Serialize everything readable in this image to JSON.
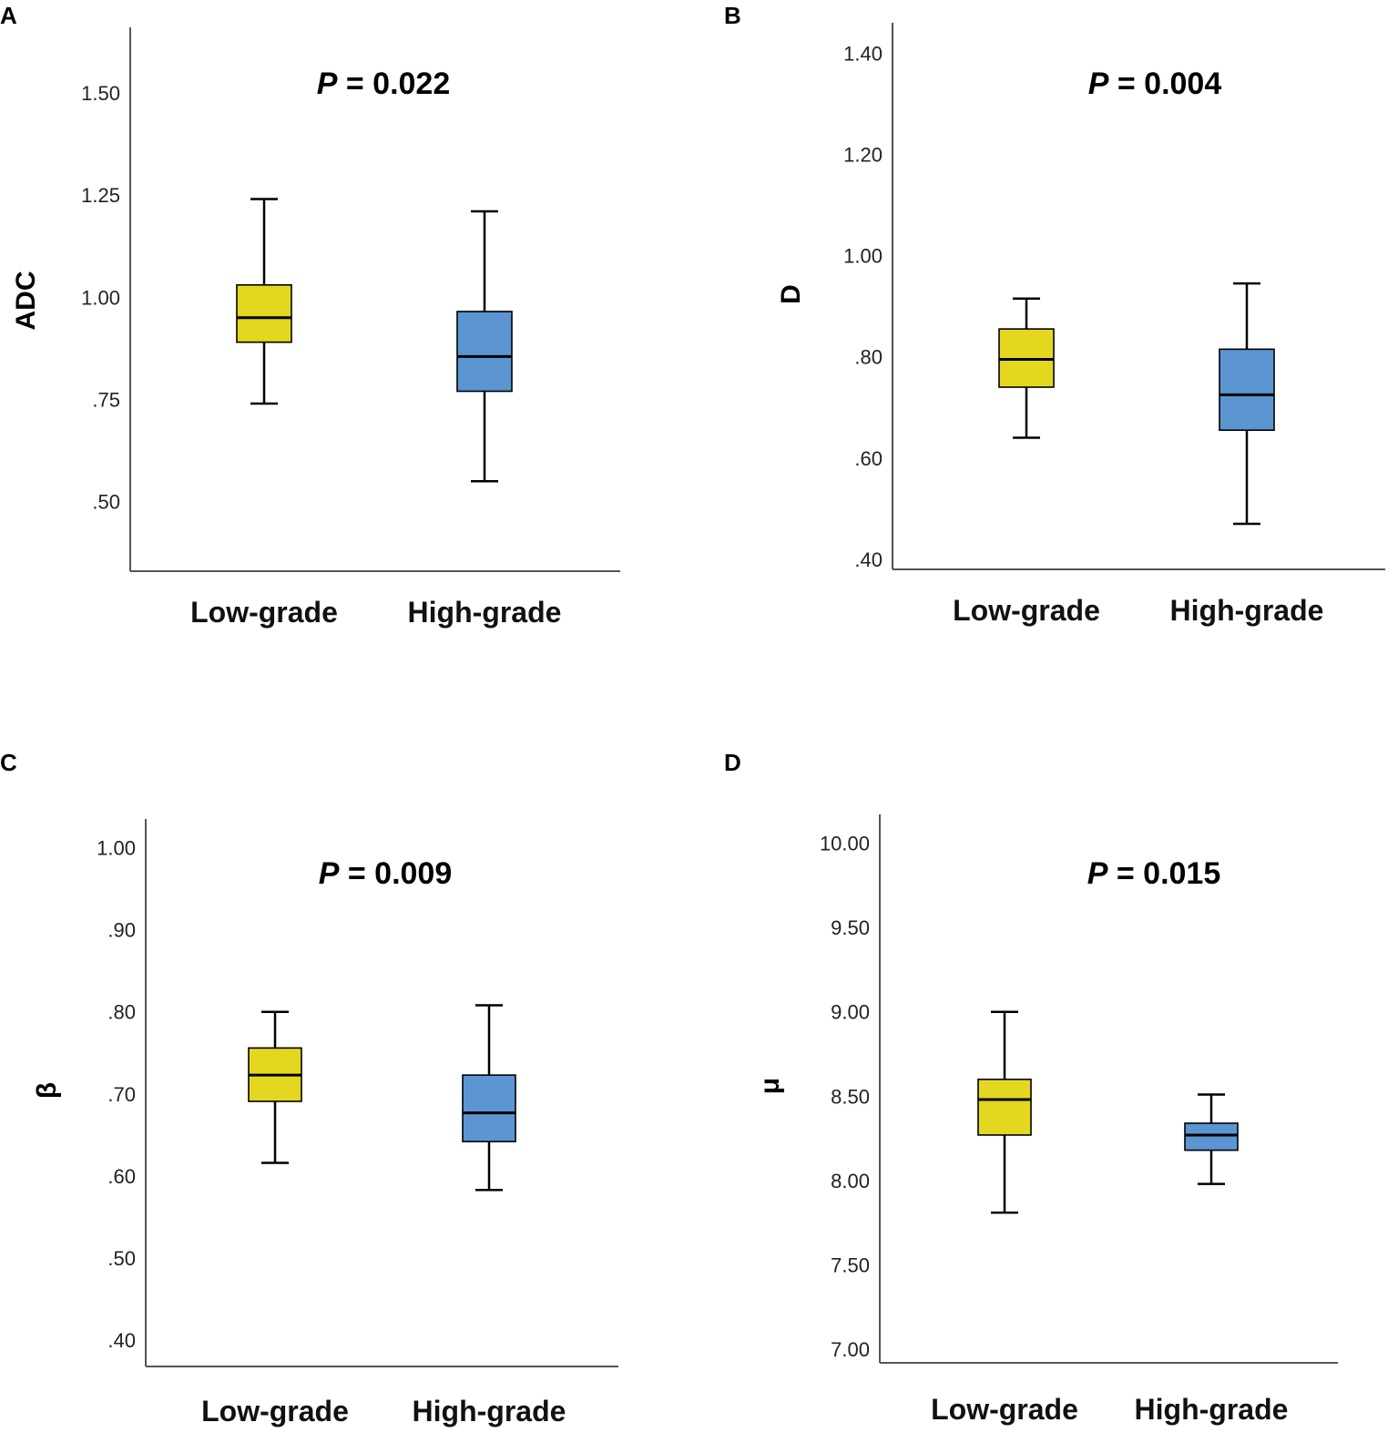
{
  "figure": {
    "p_prefix": "P",
    "p_separator": " = "
  },
  "colors": {
    "low_grade_fill": "#E3D81F",
    "high_grade_fill": "#5B95D2",
    "stroke": "#000000",
    "axis": "#555555"
  },
  "chart_data": [
    {
      "panel": "A",
      "type": "box",
      "ylabel": "ADC",
      "p_value": "0.022",
      "categories": [
        "Low-grade",
        "High-grade"
      ],
      "ylim": [
        0.33,
        1.66
      ],
      "yticks": [
        0.5,
        0.75,
        1.0,
        1.25,
        1.5
      ],
      "ytick_labels": [
        ".50",
        ".75",
        "1.00",
        "1.25",
        "1.50"
      ],
      "series": [
        {
          "name": "Low-grade",
          "min": 0.74,
          "q1": 0.89,
          "median": 0.95,
          "q3": 1.03,
          "max": 1.24
        },
        {
          "name": "High-grade",
          "min": 0.55,
          "q1": 0.77,
          "median": 0.855,
          "q3": 0.965,
          "max": 1.21
        }
      ]
    },
    {
      "panel": "B",
      "type": "box",
      "ylabel": "D",
      "p_value": "0.004",
      "categories": [
        "Low-grade",
        "High-grade"
      ],
      "ylim": [
        0.38,
        1.46
      ],
      "yticks": [
        0.4,
        0.6,
        0.8,
        1.0,
        1.2,
        1.4
      ],
      "ytick_labels": [
        ".40",
        ".60",
        ".80",
        "1.00",
        "1.20",
        "1.40"
      ],
      "series": [
        {
          "name": "Low-grade",
          "min": 0.64,
          "q1": 0.74,
          "median": 0.795,
          "q3": 0.855,
          "max": 0.915
        },
        {
          "name": "High-grade",
          "min": 0.47,
          "q1": 0.655,
          "median": 0.725,
          "q3": 0.815,
          "max": 0.945
        }
      ]
    },
    {
      "panel": "C",
      "type": "box",
      "ylabel": "β",
      "p_value": "0.009",
      "categories": [
        "Low-grade",
        "High-grade"
      ],
      "ylim": [
        0.368,
        1.035
      ],
      "yticks": [
        0.4,
        0.5,
        0.6,
        0.7,
        0.8,
        0.9,
        1.0
      ],
      "ytick_labels": [
        ".40",
        ".50",
        ".60",
        ".70",
        ".80",
        ".90",
        "1.00"
      ],
      "series": [
        {
          "name": "Low-grade",
          "min": 0.616,
          "q1": 0.691,
          "median": 0.723,
          "q3": 0.756,
          "max": 0.8
        },
        {
          "name": "High-grade",
          "min": 0.583,
          "q1": 0.642,
          "median": 0.677,
          "q3": 0.723,
          "max": 0.808
        }
      ]
    },
    {
      "panel": "D",
      "type": "box",
      "ylabel": "μ",
      "p_value": "0.015",
      "categories": [
        "Low-grade",
        "High-grade"
      ],
      "ylim": [
        6.92,
        10.17
      ],
      "yticks": [
        7.0,
        7.5,
        8.0,
        8.5,
        9.0,
        9.5,
        10.0
      ],
      "ytick_labels": [
        "7.00",
        "7.50",
        "8.00",
        "8.50",
        "9.00",
        "9.50",
        "10.00"
      ],
      "series": [
        {
          "name": "Low-grade",
          "min": 7.81,
          "q1": 8.27,
          "median": 8.48,
          "q3": 8.6,
          "max": 9.0
        },
        {
          "name": "High-grade",
          "min": 7.98,
          "q1": 8.18,
          "median": 8.27,
          "q3": 8.34,
          "max": 8.51
        }
      ]
    }
  ]
}
